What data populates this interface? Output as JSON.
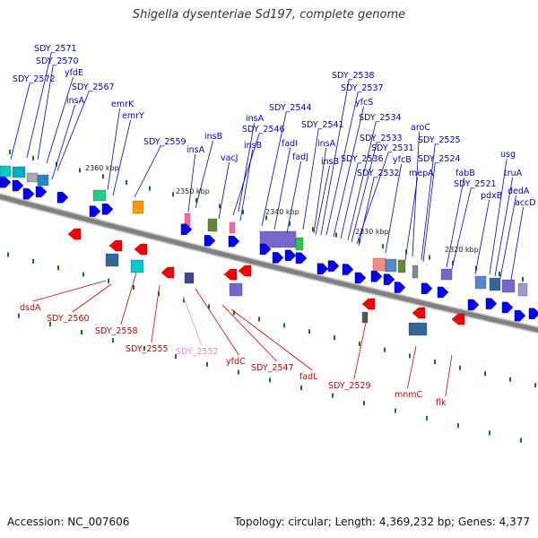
{
  "title": "Shigella dysenteriae Sd197, complete genome",
  "footer": {
    "accession": "Accession: NC_007606",
    "summary": "Topology: circular; Length: 4,369,232 bp; Genes: 4,377"
  },
  "colors": {
    "forward_label": "#0000cc",
    "reverse_label": "#cc0000",
    "pseudo_label": "#ee88cc",
    "forward_arrow": "#0000ff",
    "reverse_arrow": "#ff0000",
    "backbone": "#808080",
    "tick": "#117711"
  },
  "scale_labels": [
    "2360 kbp",
    "2350 kbp",
    "2340 kbp",
    "2330 kbp",
    "2320 kbp"
  ],
  "forward_genes": [
    "SDY_2572",
    "SDY_2571",
    "SDY_2570",
    "yfdE",
    "SDY_2567",
    "insA",
    "emrK",
    "emrY",
    "SDY_2559",
    "insA",
    "insB",
    "vacJ",
    "SDY_2546",
    "insB",
    "insA",
    "SDY_2544",
    "fadI",
    "fadJ",
    "SDY_2541",
    "insA",
    "insB",
    "SDY_2538",
    "SDY_2537",
    "yfcS",
    "SDY_2536",
    "SDY_2534",
    "SDY_2533",
    "SDY_2531",
    "SDY_2532",
    "yfcB",
    "aroC",
    "mepA",
    "SDY_2525",
    "SDY_2524",
    "fabB",
    "SDY_2521",
    "pdxB",
    "usg",
    "truA",
    "dedA",
    "accD"
  ],
  "reverse_genes": [
    "dsdA",
    "SDY_2560",
    "SDY_2558",
    "SDY_2555",
    "SDY_2552",
    "yfdC",
    "SDY_2547",
    "fadL",
    "SDY_2529",
    "mnmC",
    "flk"
  ]
}
